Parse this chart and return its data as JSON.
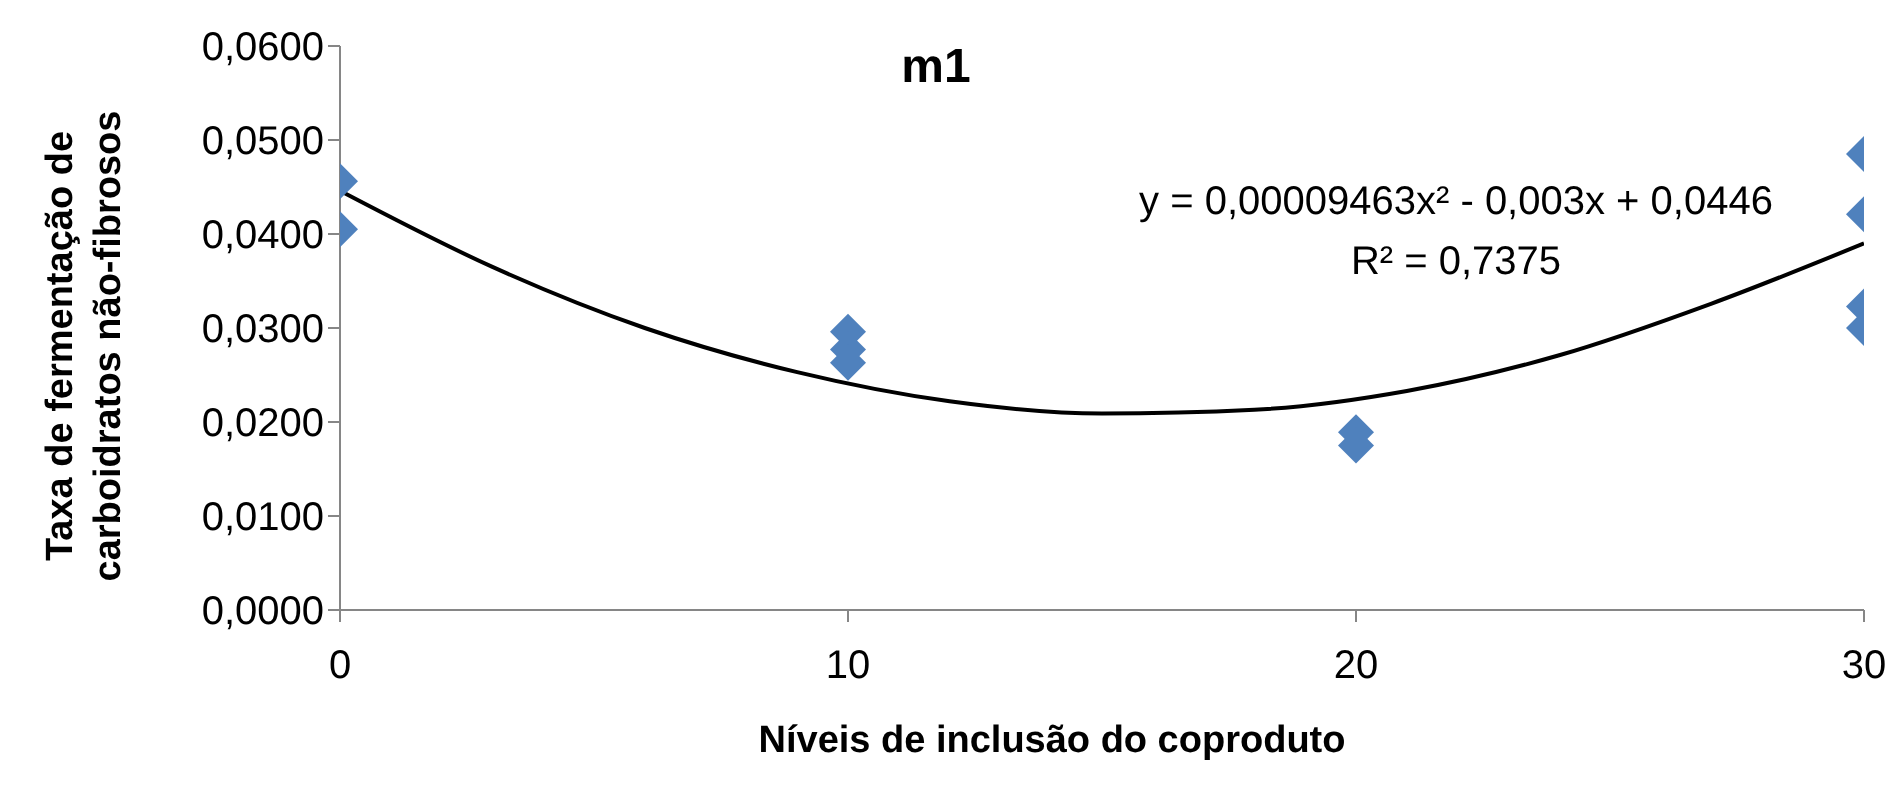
{
  "chart_data": {
    "type": "scatter",
    "title": "m1",
    "xlabel": "Níveis de inclusão do coproduto",
    "ylabel": "Taxa de fermentação de carboidratos não-fibrosos",
    "annotations": [
      "y = 0,00009463x² - 0,003x + 0,0446",
      "R² = 0,7375"
    ],
    "xlim": [
      0,
      30
    ],
    "xticks": [
      0,
      10,
      20,
      30
    ],
    "ylim": [
      0,
      0.06
    ],
    "yticks": [
      {
        "value": 0,
        "label": "0,0000"
      },
      {
        "value": 0.01,
        "label": "0,0100"
      },
      {
        "value": 0.02,
        "label": "0,0200"
      },
      {
        "value": 0.03,
        "label": "0,0300"
      },
      {
        "value": 0.04,
        "label": "0,0400"
      },
      {
        "value": 0.05,
        "label": "0,0500"
      },
      {
        "value": 0.06,
        "label": "0,0600"
      }
    ],
    "grid": false,
    "legend": false,
    "marker": "diamond",
    "series": [
      {
        "color": "#4f81bd",
        "x": [
          0,
          0,
          10,
          10,
          10,
          20,
          20,
          30,
          30,
          30,
          30
        ],
        "values": [
          0.0456,
          0.0405,
          0.0296,
          0.0277,
          0.0263,
          0.0189,
          0.0175,
          0.0485,
          0.0421,
          0.0323,
          0.03
        ]
      },
      {
        "type": "line",
        "color": "#000000",
        "marker": "none",
        "line_style": "solid",
        "x": [
          0,
          3,
          6,
          9,
          12,
          15,
          18,
          21,
          24,
          27,
          30
        ],
        "values": [
          0.0446,
          0.0365,
          0.03,
          0.0253,
          0.0222,
          0.0209,
          0.0213,
          0.0233,
          0.0271,
          0.0326,
          0.039
        ]
      }
    ]
  }
}
